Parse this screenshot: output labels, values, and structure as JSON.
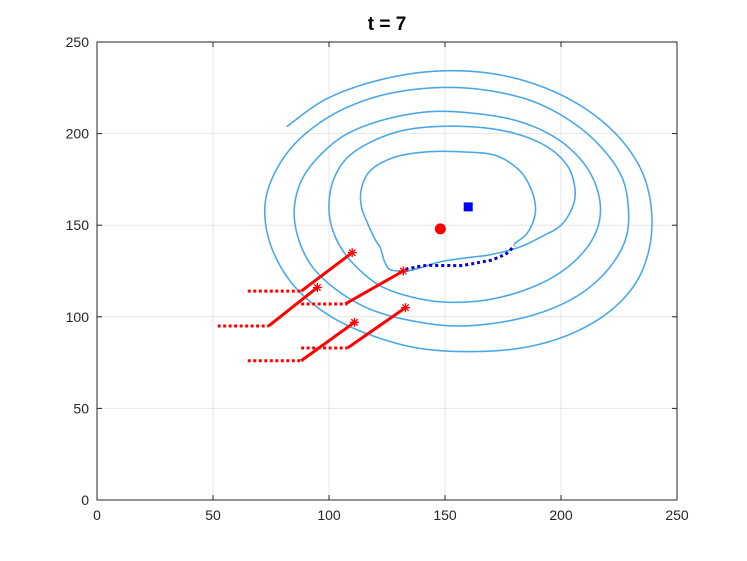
{
  "chart_data": {
    "type": "line",
    "title": "t = 7",
    "xlabel": "",
    "ylabel": "",
    "xlim": [
      0,
      250
    ],
    "ylim": [
      0,
      250
    ],
    "xticks": [
      0,
      50,
      100,
      150,
      200,
      250
    ],
    "yticks": [
      0,
      50,
      100,
      150,
      200,
      250
    ],
    "grid": true,
    "legend": "none",
    "colors": {
      "spiral": "#4aa8e8",
      "agent": "#ff0000",
      "target": "#0000ff",
      "trail": "#0000cc",
      "axis": "#262626",
      "grid": "#e6e6e6"
    },
    "series": [
      {
        "kind": "spiral",
        "style": "dotted-line",
        "points": [
          [
            180,
            140
          ],
          [
            185,
            145
          ],
          [
            188,
            152
          ],
          [
            189,
            160
          ],
          [
            187,
            170
          ],
          [
            182,
            180
          ],
          [
            172,
            188
          ],
          [
            158,
            190
          ],
          [
            142,
            190
          ],
          [
            128,
            187
          ],
          [
            118,
            180
          ],
          [
            114,
            170
          ],
          [
            114,
            160
          ],
          [
            117,
            150
          ],
          [
            120,
            142
          ],
          [
            122,
            138
          ],
          [
            123,
            134
          ],
          [
            124,
            130
          ],
          [
            126,
            126
          ],
          [
            130,
            125
          ],
          [
            134,
            125
          ],
          [
            140,
            127
          ],
          [
            148,
            130
          ],
          [
            158,
            132
          ],
          [
            170,
            134
          ],
          [
            182,
            138
          ],
          [
            192,
            144
          ],
          [
            200,
            150
          ],
          [
            205,
            160
          ],
          [
            206,
            170
          ],
          [
            203,
            182
          ],
          [
            195,
            192
          ],
          [
            183,
            199
          ],
          [
            168,
            203
          ],
          [
            150,
            204
          ],
          [
            133,
            202
          ],
          [
            119,
            196
          ],
          [
            108,
            187
          ],
          [
            102,
            175
          ],
          [
            100,
            162
          ],
          [
            101,
            150
          ],
          [
            105,
            138
          ],
          [
            112,
            127
          ],
          [
            122,
            117
          ],
          [
            135,
            111
          ],
          [
            150,
            108
          ],
          [
            167,
            109
          ],
          [
            183,
            114
          ],
          [
            197,
            122
          ],
          [
            208,
            133
          ],
          [
            215,
            146
          ],
          [
            217,
            160
          ],
          [
            214,
            175
          ],
          [
            207,
            188
          ],
          [
            196,
            199
          ],
          [
            181,
            207
          ],
          [
            163,
            211
          ],
          [
            144,
            212
          ],
          [
            125,
            208
          ],
          [
            108,
            200
          ],
          [
            96,
            188
          ],
          [
            88,
            174
          ],
          [
            85,
            158
          ],
          [
            87,
            142
          ],
          [
            93,
            127
          ],
          [
            104,
            114
          ],
          [
            118,
            104
          ],
          [
            135,
            98
          ],
          [
            154,
            95
          ],
          [
            174,
            97
          ],
          [
            193,
            103
          ],
          [
            209,
            113
          ],
          [
            221,
            127
          ],
          [
            228,
            143
          ],
          [
            229,
            160
          ],
          [
            226,
            177
          ],
          [
            217,
            193
          ],
          [
            204,
            207
          ],
          [
            187,
            218
          ],
          [
            166,
            224
          ],
          [
            145,
            225
          ],
          [
            123,
            221
          ],
          [
            104,
            212
          ],
          [
            89,
            199
          ],
          [
            79,
            184
          ],
          [
            73,
            166
          ],
          [
            73,
            148
          ],
          [
            78,
            130
          ],
          [
            87,
            114
          ],
          [
            101,
            100
          ],
          [
            118,
            90
          ],
          [
            138,
            83
          ],
          [
            160,
            81
          ],
          [
            183,
            83
          ],
          [
            203,
            90
          ],
          [
            220,
            102
          ],
          [
            232,
            118
          ],
          [
            238,
            137
          ],
          [
            239,
            158
          ],
          [
            235,
            179
          ],
          [
            225,
            198
          ],
          [
            210,
            214
          ],
          [
            191,
            226
          ],
          [
            169,
            233
          ],
          [
            145,
            234
          ],
          [
            121,
            229
          ],
          [
            99,
            219
          ],
          [
            82,
            204
          ]
        ]
      },
      {
        "kind": "trail",
        "style": "dotted-thick",
        "points": [
          [
            133,
            126
          ],
          [
            137,
            127
          ],
          [
            142,
            128
          ],
          [
            147,
            128
          ],
          [
            152,
            128
          ],
          [
            157,
            128
          ],
          [
            162,
            129
          ],
          [
            166,
            130
          ],
          [
            170,
            131
          ],
          [
            174,
            133
          ],
          [
            177,
            135
          ],
          [
            180,
            139
          ]
        ]
      },
      {
        "kind": "agent-current",
        "style": "solid-with-star",
        "points": [
          [
            107,
            107
          ],
          [
            132,
            125
          ]
        ]
      },
      {
        "kind": "agent-current",
        "style": "solid-with-star",
        "points": [
          [
            108,
            83
          ],
          [
            133,
            105
          ]
        ]
      },
      {
        "kind": "agent-current",
        "style": "solid-with-star",
        "points": [
          [
            74,
            95
          ],
          [
            95,
            116
          ]
        ]
      },
      {
        "kind": "agent-current",
        "style": "solid-with-star",
        "points": [
          [
            88,
            76
          ],
          [
            111,
            97
          ]
        ]
      },
      {
        "kind": "agent-current",
        "style": "solid-with-star",
        "points": [
          [
            88,
            114
          ],
          [
            110,
            135
          ]
        ]
      },
      {
        "kind": "agent-history",
        "style": "dotted-thick",
        "points": [
          [
            65,
            114
          ],
          [
            88,
            114
          ]
        ]
      },
      {
        "kind": "agent-history",
        "style": "dotted-thick",
        "points": [
          [
            52,
            95
          ],
          [
            74,
            95
          ]
        ]
      },
      {
        "kind": "agent-history",
        "style": "dotted-thick",
        "points": [
          [
            65,
            76
          ],
          [
            88,
            76
          ]
        ]
      },
      {
        "kind": "agent-history",
        "style": "dotted-thick",
        "points": [
          [
            88,
            107
          ],
          [
            108,
            107
          ]
        ]
      },
      {
        "kind": "agent-history",
        "style": "dotted-thick",
        "points": [
          [
            88,
            83
          ],
          [
            108,
            83
          ]
        ]
      }
    ],
    "markers": [
      {
        "kind": "agent-centroid",
        "shape": "circle",
        "x": 148,
        "y": 148
      },
      {
        "kind": "target",
        "shape": "square",
        "x": 160,
        "y": 160
      }
    ]
  }
}
